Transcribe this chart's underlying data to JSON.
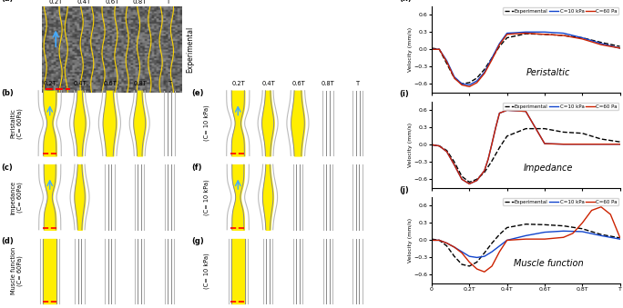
{
  "time_labels_a": [
    "0.2T",
    "0.4T",
    "0.6T",
    "0.8T",
    "T"
  ],
  "time_labels_b": [
    "0.2T",
    "0.4T",
    "0.6T",
    "0.8T",
    "T"
  ],
  "time_labels_e": [
    "0.2T",
    "0.4T",
    "0.6T",
    "0.8T",
    "T"
  ],
  "row_labels_left": [
    "Peristaltic\n(C= 60Pa)",
    "Impedance\n(C= 60Pa)",
    "Muscle function\n(C= 60Pa)"
  ],
  "row_labels_right_rotated": [
    "(C= 10 kPa)",
    "(C= 10 kPa)",
    "(C= 10 kPa)"
  ],
  "plot_titles": [
    "Peristaltic",
    "Impedance",
    "Muscle function"
  ],
  "legend_labels": [
    "Experimental",
    "C=10 kPa",
    "C=60 Pa"
  ],
  "ylabel": "Velocity (mm/s)",
  "xlabel_ticks": [
    "0",
    "0.2T",
    "0.4T",
    "0.6T",
    "0.8T",
    "T"
  ],
  "ylim": [
    -0.75,
    0.75
  ],
  "yticks": [
    -0.6,
    -0.3,
    0,
    0.3,
    0.6
  ],
  "yellow_fill": "#FFEE00",
  "bg_color": "#FFFFFF",
  "line_color_exp": "#000000",
  "line_color_10kpa": "#1144CC",
  "line_color_60pa": "#CC2200",
  "peristaltic_exp_x": [
    0,
    0.04,
    0.08,
    0.12,
    0.16,
    0.2,
    0.24,
    0.28,
    0.32,
    0.36,
    0.4,
    0.5,
    0.6,
    0.7,
    0.8,
    0.9,
    1.0
  ],
  "peristaltic_exp_y": [
    0.02,
    0.0,
    -0.25,
    -0.5,
    -0.6,
    -0.58,
    -0.5,
    -0.35,
    -0.15,
    0.05,
    0.2,
    0.27,
    0.26,
    0.24,
    0.2,
    0.12,
    0.05
  ],
  "peristaltic_10kpa_x": [
    0,
    0.04,
    0.08,
    0.12,
    0.16,
    0.2,
    0.24,
    0.28,
    0.32,
    0.36,
    0.4,
    0.5,
    0.6,
    0.7,
    0.8,
    0.9,
    1.0
  ],
  "peristaltic_10kpa_y": [
    0.0,
    0.0,
    -0.2,
    -0.48,
    -0.6,
    -0.62,
    -0.55,
    -0.4,
    -0.15,
    0.1,
    0.28,
    0.3,
    0.3,
    0.28,
    0.2,
    0.1,
    0.02
  ],
  "peristaltic_60pa_x": [
    0,
    0.04,
    0.08,
    0.12,
    0.16,
    0.2,
    0.24,
    0.28,
    0.32,
    0.36,
    0.4,
    0.5,
    0.6,
    0.7,
    0.8,
    0.9,
    1.0
  ],
  "peristaltic_60pa_y": [
    0.0,
    0.0,
    -0.22,
    -0.5,
    -0.62,
    -0.65,
    -0.58,
    -0.42,
    -0.18,
    0.08,
    0.26,
    0.28,
    0.26,
    0.24,
    0.18,
    0.08,
    0.02
  ],
  "impedance_exp_x": [
    0,
    0.04,
    0.08,
    0.12,
    0.16,
    0.2,
    0.24,
    0.28,
    0.32,
    0.36,
    0.4,
    0.5,
    0.6,
    0.7,
    0.8,
    0.9,
    1.0
  ],
  "impedance_exp_y": [
    0.0,
    -0.02,
    -0.1,
    -0.3,
    -0.55,
    -0.65,
    -0.6,
    -0.48,
    -0.28,
    -0.05,
    0.15,
    0.28,
    0.28,
    0.22,
    0.2,
    0.1,
    0.05
  ],
  "impedance_10kpa_x": [
    0,
    0.04,
    0.08,
    0.12,
    0.16,
    0.2,
    0.24,
    0.28,
    0.3,
    0.32,
    0.34,
    0.36,
    0.4,
    0.5,
    0.6,
    0.7,
    0.8,
    0.9,
    1.0
  ],
  "impedance_10kpa_y": [
    0.0,
    -0.02,
    -0.12,
    -0.35,
    -0.6,
    -0.68,
    -0.62,
    -0.45,
    -0.25,
    0.02,
    0.3,
    0.55,
    0.6,
    0.58,
    0.02,
    0.01,
    0.01,
    0.01,
    0.01
  ],
  "impedance_60pa_x": [
    0,
    0.04,
    0.08,
    0.12,
    0.16,
    0.2,
    0.24,
    0.28,
    0.3,
    0.32,
    0.34,
    0.36,
    0.4,
    0.5,
    0.6,
    0.7,
    0.8,
    0.9,
    1.0
  ],
  "impedance_60pa_y": [
    0.0,
    -0.02,
    -0.12,
    -0.35,
    -0.6,
    -0.68,
    -0.62,
    -0.45,
    -0.25,
    0.02,
    0.3,
    0.55,
    0.6,
    0.58,
    0.02,
    0.01,
    0.01,
    0.01,
    0.01
  ],
  "muscle_exp_x": [
    0,
    0.04,
    0.08,
    0.12,
    0.16,
    0.2,
    0.24,
    0.28,
    0.32,
    0.36,
    0.4,
    0.5,
    0.6,
    0.7,
    0.8,
    0.9,
    1.0
  ],
  "muscle_exp_y": [
    0.02,
    0.0,
    -0.1,
    -0.28,
    -0.42,
    -0.45,
    -0.38,
    -0.22,
    -0.05,
    0.1,
    0.22,
    0.28,
    0.27,
    0.25,
    0.2,
    0.1,
    0.04
  ],
  "muscle_10kpa_x": [
    0,
    0.04,
    0.08,
    0.12,
    0.16,
    0.2,
    0.24,
    0.28,
    0.32,
    0.36,
    0.4,
    0.5,
    0.6,
    0.7,
    0.8,
    0.9,
    1.0
  ],
  "muscle_10kpa_y": [
    0.0,
    0.0,
    -0.05,
    -0.12,
    -0.2,
    -0.28,
    -0.3,
    -0.28,
    -0.2,
    -0.1,
    0.0,
    0.08,
    0.14,
    0.16,
    0.15,
    0.08,
    0.02
  ],
  "muscle_60pa_x": [
    0,
    0.04,
    0.08,
    0.12,
    0.16,
    0.2,
    0.24,
    0.28,
    0.32,
    0.36,
    0.4,
    0.5,
    0.6,
    0.7,
    0.75,
    0.8,
    0.85,
    0.9,
    0.95,
    1.0
  ],
  "muscle_60pa_y": [
    0.0,
    0.0,
    -0.05,
    -0.12,
    -0.22,
    -0.38,
    -0.5,
    -0.55,
    -0.45,
    -0.2,
    0.0,
    0.02,
    0.02,
    0.05,
    0.12,
    0.3,
    0.52,
    0.58,
    0.45,
    0.05
  ]
}
